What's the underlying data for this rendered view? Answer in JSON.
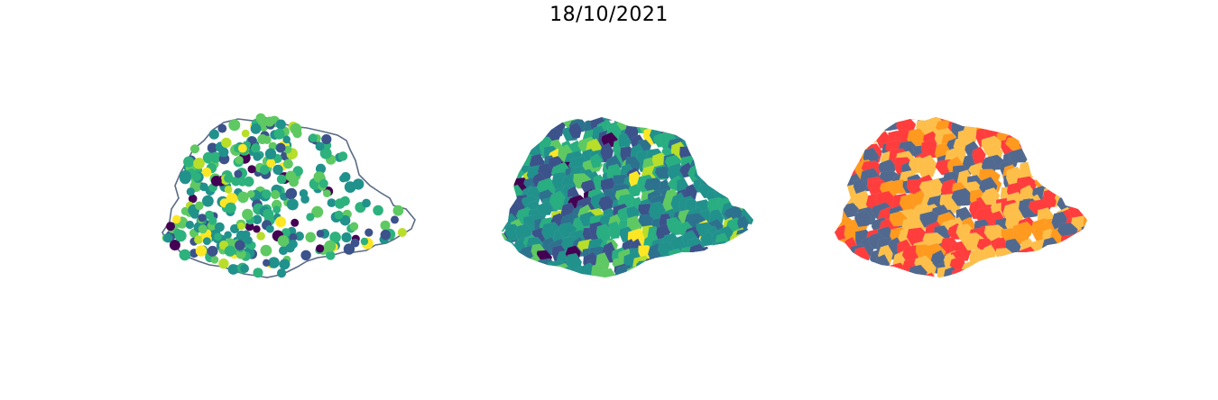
{
  "figure": {
    "title": "18/10/2021"
  },
  "maps": [
    {
      "kind": "point-map",
      "palette": [
        "#440154",
        "#3b528b",
        "#21918c",
        "#2db27d",
        "#5ec962",
        "#b8de29",
        "#fde725"
      ],
      "outline_color": "#5a6b85"
    },
    {
      "kind": "choropleth",
      "palette": [
        "#440154",
        "#3b528b",
        "#2c728e",
        "#21918c",
        "#28ae80",
        "#5ec962",
        "#b8de29",
        "#fde725"
      ]
    },
    {
      "kind": "categorical-choropleth",
      "palette": [
        "#51698f",
        "#ff3d3d",
        "#ff9a1f",
        "#fdbf4a"
      ]
    }
  ]
}
